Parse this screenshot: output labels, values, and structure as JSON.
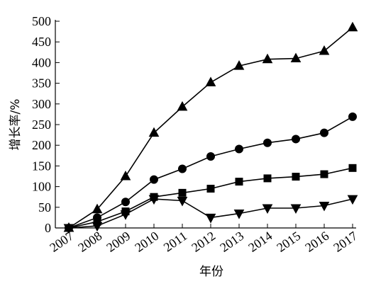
{
  "chart_data": {
    "type": "line",
    "title": "",
    "xlabel": "年份",
    "ylabel": "增长率/%",
    "categories": [
      "2007",
      "2008",
      "2009",
      "2010",
      "2011",
      "2012",
      "2013",
      "2014",
      "2015",
      "2016",
      "2017"
    ],
    "ylim": [
      0,
      500
    ],
    "yticks": [
      "0",
      "50",
      "100",
      "150",
      "200",
      "250",
      "300",
      "350",
      "400",
      "450",
      "500"
    ],
    "grid": false,
    "legend": "none",
    "series": [
      {
        "marker": "triangle-up",
        "values": [
          0,
          45,
          125,
          230,
          293,
          352,
          392,
          408,
          410,
          428,
          485
        ]
      },
      {
        "marker": "circle",
        "values": [
          0,
          25,
          63,
          117,
          143,
          173,
          191,
          206,
          215,
          230,
          269
        ]
      },
      {
        "marker": "square",
        "values": [
          0,
          15,
          40,
          75,
          85,
          95,
          112,
          120,
          124,
          130,
          145
        ]
      },
      {
        "marker": "triangle-down",
        "values": [
          0,
          5,
          33,
          70,
          66,
          25,
          35,
          48,
          48,
          54,
          70
        ]
      }
    ],
    "color": "#000000"
  }
}
